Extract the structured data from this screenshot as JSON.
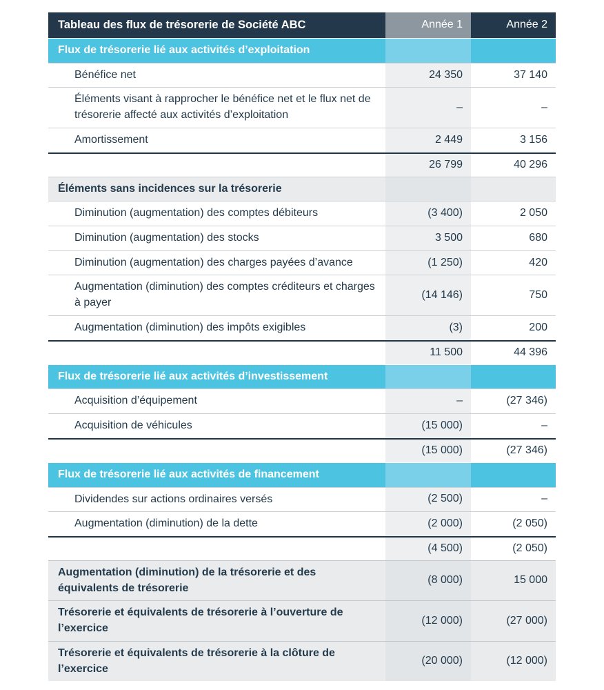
{
  "table": {
    "title": "Tableau des flux de trésorerie de Société ABC",
    "columns": [
      "Année 1",
      "Année 2"
    ],
    "colors": {
      "header_bg": "#23384a",
      "header_col1_bg": "#8d979f",
      "banner_bg": "#4cc3e0",
      "banner_col1_bg": "#79d0e8",
      "col1_stripe_bg": "#edeff1",
      "grey_row_bg": "#e9ebed",
      "grey_row_col1_bg": "#e2e5e8",
      "text": "#243b4c",
      "rule_navy": "#1e3547",
      "rule_light": "#ccd0d4"
    },
    "rows": [
      {
        "type": "banner",
        "label": "Flux de trésorerie lié aux activités d’exploitation",
        "y1": "",
        "y2": ""
      },
      {
        "type": "item",
        "label": "Bénéfice net",
        "y1": "24 350",
        "y2": "37 140"
      },
      {
        "type": "item",
        "label": "Éléments visant à rapprocher le bénéfice net et le flux net de trésorerie affecté aux activités d’exploitation",
        "y1": "–",
        "y2": "–"
      },
      {
        "type": "item",
        "label": "Amortissement",
        "y1": "2 449",
        "y2": "3 156"
      },
      {
        "type": "subtotal",
        "label": "",
        "y1": "26 799",
        "y2": "40 296"
      },
      {
        "type": "subheader",
        "label": "Éléments sans incidences sur la trésorerie",
        "y1": "",
        "y2": ""
      },
      {
        "type": "item",
        "label": "Diminution (augmentation) des comptes débiteurs",
        "y1": "(3 400)",
        "y2": "2 050"
      },
      {
        "type": "item",
        "label": "Diminution (augmentation) des stocks",
        "y1": "3 500",
        "y2": "680"
      },
      {
        "type": "item",
        "label": "Diminution (augmentation) des charges payées d’avance",
        "y1": "(1 250)",
        "y2": "420"
      },
      {
        "type": "item",
        "label": "Augmentation (diminution) des comptes créditeurs et charges à payer",
        "y1": "(14 146)",
        "y2": "750"
      },
      {
        "type": "item",
        "label": "Augmentation (diminution) des impôts exigibles",
        "y1": "(3)",
        "y2": "200"
      },
      {
        "type": "subtotal",
        "label": "",
        "y1": "11 500",
        "y2": "44 396"
      },
      {
        "type": "banner",
        "label": "Flux de trésorerie lié aux activités d’investissement",
        "y1": "",
        "y2": ""
      },
      {
        "type": "item",
        "label": "Acquisition d’équipement",
        "y1": "–",
        "y2": "(27 346)"
      },
      {
        "type": "item",
        "label": "Acquisition de véhicules",
        "y1": "(15 000)",
        "y2": "–"
      },
      {
        "type": "subtotal",
        "label": "",
        "y1": "(15 000)",
        "y2": "(27 346)"
      },
      {
        "type": "banner",
        "label": "Flux de trésorerie lié aux activités de financement",
        "y1": "",
        "y2": ""
      },
      {
        "type": "item",
        "label": "Dividendes sur actions ordinaires versés",
        "y1": "(2 500)",
        "y2": "–"
      },
      {
        "type": "item",
        "label": "Augmentation (diminution) de la dette",
        "y1": "(2 000)",
        "y2": "(2 050)"
      },
      {
        "type": "subtotal",
        "label": "",
        "y1": "(4 500)",
        "y2": "(2 050)"
      },
      {
        "type": "total",
        "label": "Augmentation (diminution) de la trésorerie et des équivalents de trésorerie",
        "y1": "(8 000)",
        "y2": "15 000"
      },
      {
        "type": "total",
        "label": "Trésorerie et équivalents de trésorerie à l’ouverture de l’exercice",
        "y1": "(12 000)",
        "y2": "(27 000)"
      },
      {
        "type": "total",
        "label": "Trésorerie et équivalents de trésorerie à la clôture de l’exercice",
        "y1": "(20 000)",
        "y2": "(12 000)"
      }
    ]
  }
}
